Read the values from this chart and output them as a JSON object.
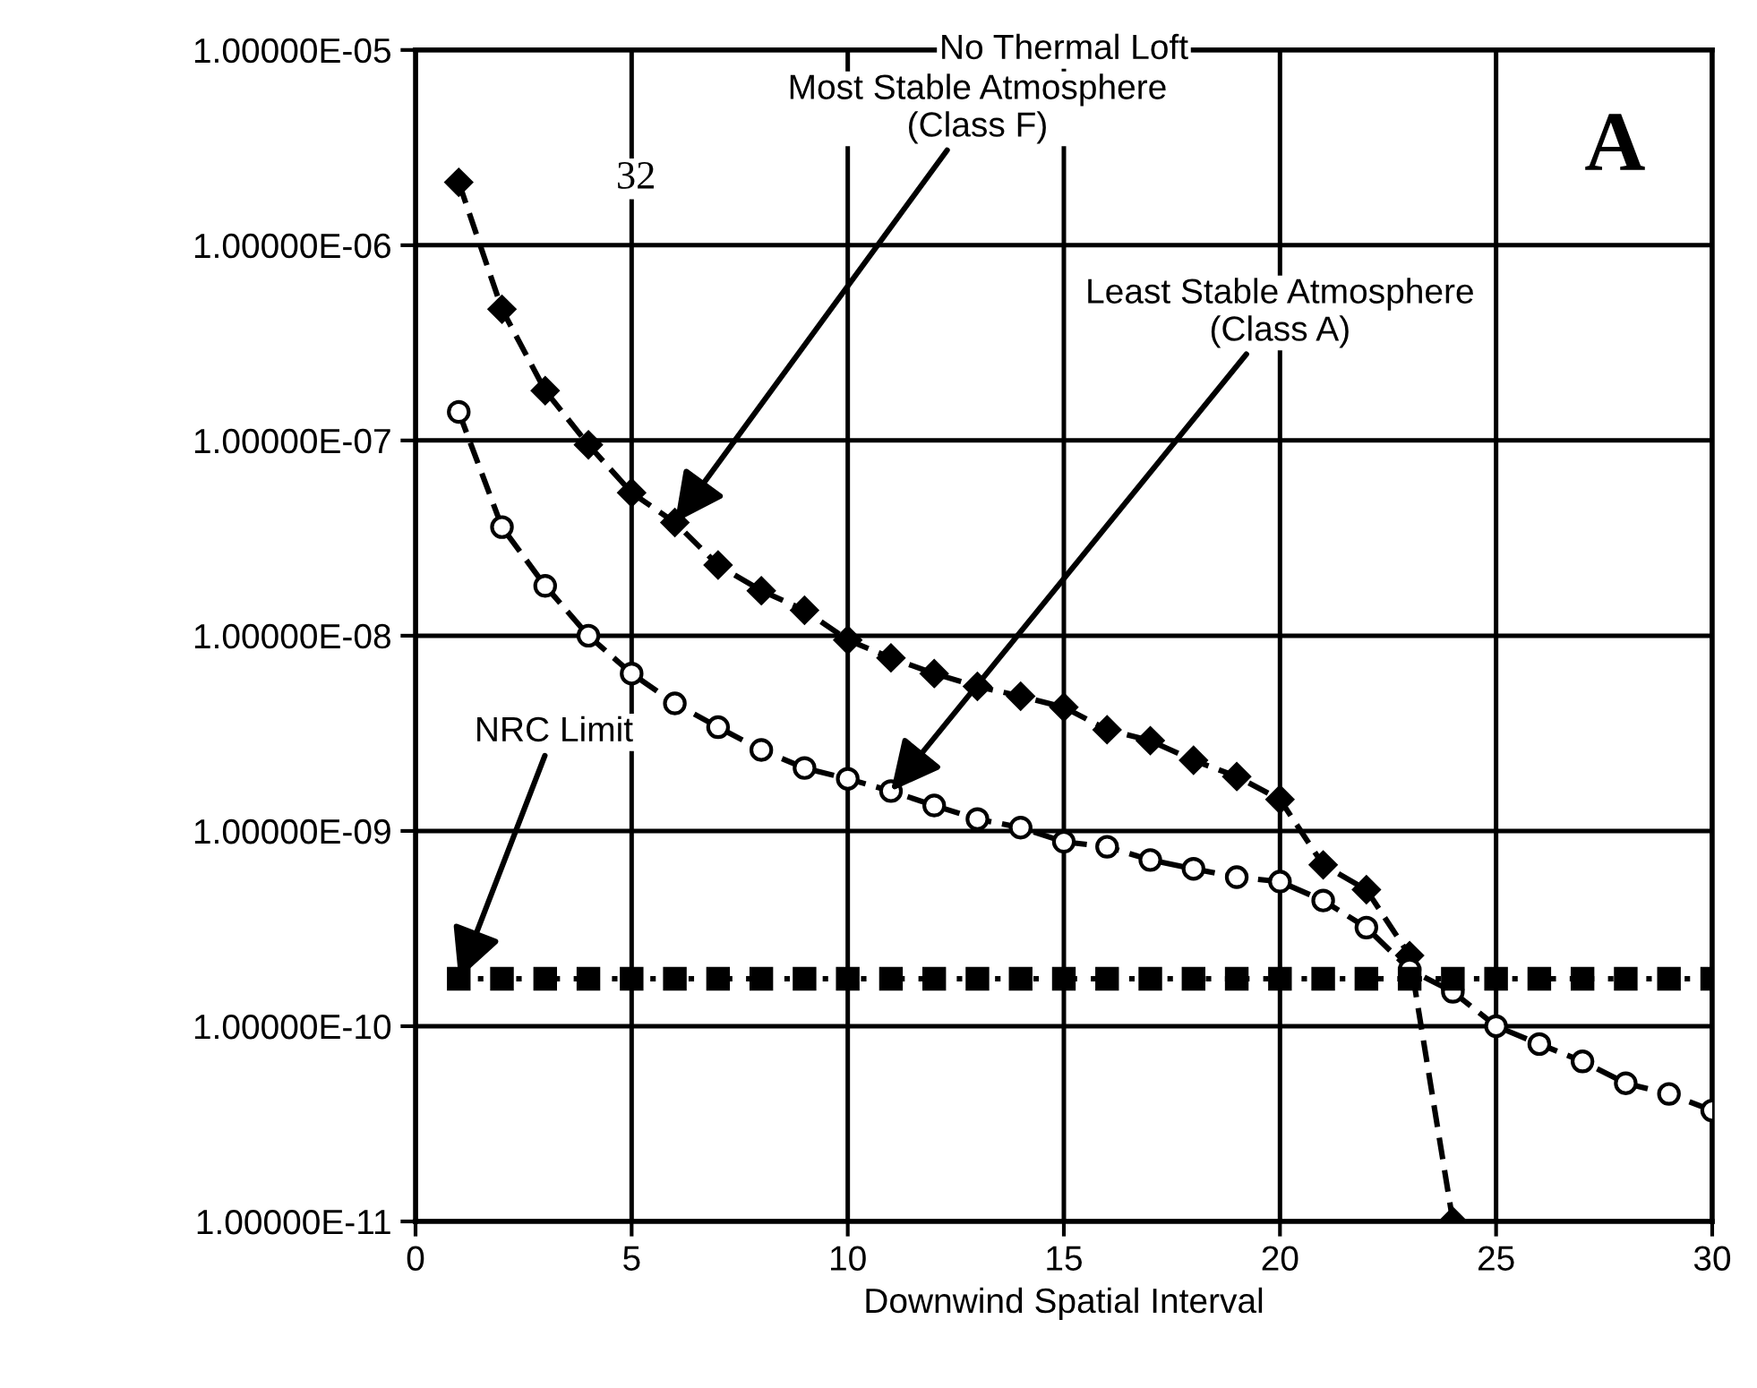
{
  "chart_data": {
    "type": "line",
    "title": "No Thermal Loft",
    "xlabel": "Downwind Spatial Interval",
    "log": "y",
    "grid": true,
    "xlim": [
      0,
      30
    ],
    "xticks": [
      0,
      5,
      10,
      15,
      20,
      25,
      30
    ],
    "ylim": [
      1e-11,
      1e-05
    ],
    "yticks": [
      {
        "value": 1e-11,
        "label": "1.00000E-11"
      },
      {
        "value": 1e-10,
        "label": "1.00000E-10"
      },
      {
        "value": 1e-09,
        "label": "1.00000E-09"
      },
      {
        "value": 1e-08,
        "label": "1.00000E-08"
      },
      {
        "value": 1e-07,
        "label": "1.00000E-07"
      },
      {
        "value": 1e-06,
        "label": "1.00000E-06"
      },
      {
        "value": 1e-05,
        "label": "1.00000E-05"
      }
    ],
    "series": [
      {
        "color": "#000000",
        "marker": "diamond",
        "line_style": "dashed",
        "x": [
          1,
          2,
          3,
          4,
          5,
          6,
          7,
          8,
          9,
          10,
          11,
          12,
          13,
          14,
          15,
          16,
          17,
          18,
          19,
          20,
          21,
          22,
          23,
          24
        ],
        "values": [
          2.1e-06,
          4.7e-07,
          1.8e-07,
          9.5e-08,
          5.4e-08,
          3.8e-08,
          2.3e-08,
          1.7e-08,
          1.35e-08,
          9.5e-09,
          7.7e-09,
          6.4e-09,
          5.5e-09,
          4.9e-09,
          4.3e-09,
          3.3e-09,
          2.9e-09,
          2.3e-09,
          1.9e-09,
          1.45e-09,
          6.7e-10,
          5e-10,
          2.3e-10,
          1e-11
        ]
      },
      {
        "color": "#000000",
        "marker": "circle",
        "line_style": "dashed",
        "x": [
          1,
          2,
          3,
          4,
          5,
          6,
          7,
          8,
          9,
          10,
          11,
          12,
          13,
          14,
          15,
          16,
          17,
          18,
          19,
          20,
          21,
          22,
          23,
          24,
          25,
          26,
          27,
          28,
          29,
          30
        ],
        "values": [
          1.4e-07,
          3.6e-08,
          1.8e-08,
          1e-08,
          6.4e-09,
          4.5e-09,
          3.4e-09,
          2.6e-09,
          2.1e-09,
          1.85e-09,
          1.6e-09,
          1.35e-09,
          1.15e-09,
          1.04e-09,
          8.8e-10,
          8.3e-10,
          7.1e-10,
          6.4e-10,
          5.8e-10,
          5.5e-10,
          4.4e-10,
          3.2e-10,
          1.95e-10,
          1.5e-10,
          1e-10,
          8.1e-11,
          6.6e-11,
          5.1e-11,
          4.5e-11,
          3.7e-11
        ]
      },
      {
        "color": "#000000",
        "marker": "square",
        "line_style": "dotted",
        "x": [
          1,
          2,
          3,
          4,
          5,
          6,
          7,
          8,
          9,
          10,
          11,
          12,
          13,
          14,
          15,
          16,
          17,
          18,
          19,
          20,
          21,
          22,
          23,
          24,
          25,
          26,
          27,
          28,
          29,
          30
        ],
        "values": [
          1.75e-10,
          1.75e-10,
          1.75e-10,
          1.75e-10,
          1.75e-10,
          1.75e-10,
          1.75e-10,
          1.75e-10,
          1.75e-10,
          1.75e-10,
          1.75e-10,
          1.75e-10,
          1.75e-10,
          1.75e-10,
          1.75e-10,
          1.75e-10,
          1.75e-10,
          1.75e-10,
          1.75e-10,
          1.75e-10,
          1.75e-10,
          1.75e-10,
          1.75e-10,
          1.75e-10,
          1.75e-10,
          1.75e-10,
          1.75e-10,
          1.75e-10,
          1.75e-10,
          1.75e-10
        ]
      }
    ],
    "annotations": [
      {
        "text": "Most Stable Atmosphere\n(Class F)",
        "x": 6,
        "y": 3.8e-08
      },
      {
        "text": "Least Stable Atmosphere\n(Class A)",
        "x": 11,
        "y": 1.6e-09
      },
      {
        "text": "NRC Limit",
        "x": 1,
        "y": 1.75e-10
      },
      "32",
      "A"
    ]
  }
}
